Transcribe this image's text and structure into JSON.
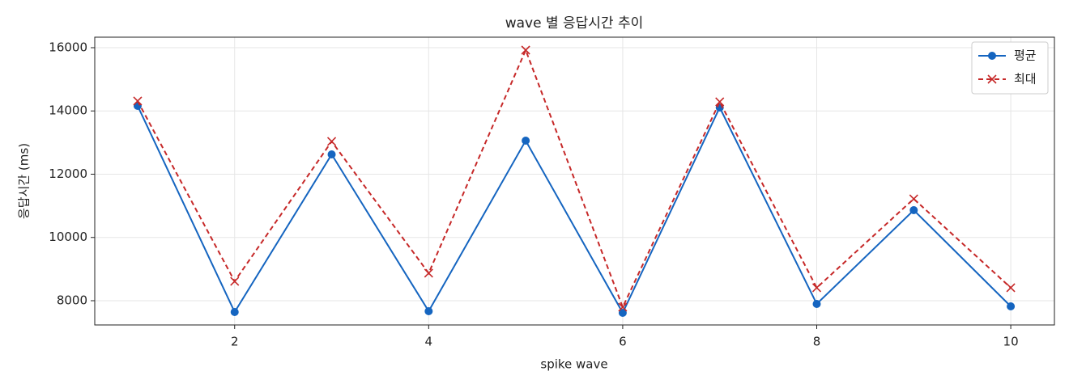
{
  "chart_data": {
    "type": "line",
    "title": "wave 별 응답시간 추이",
    "x_label": "spike wave",
    "y_label": "응답시간 (ms)",
    "x": [
      1,
      2,
      3,
      4,
      5,
      6,
      7,
      8,
      9,
      10
    ],
    "series": [
      {
        "name": "평균",
        "color": "#1565c0",
        "marker": "o",
        "linestyle": "solid",
        "values": [
          14160,
          7642,
          12626,
          7668,
          13061,
          7617,
          14109,
          7898,
          10863,
          7821
        ]
      },
      {
        "name": "최대",
        "color": "#c62828",
        "marker": "x",
        "linestyle": "dashed",
        "values": [
          14313,
          8613,
          13035,
          8869,
          15923,
          7796,
          14288,
          8409,
          11220,
          8409
        ]
      }
    ],
    "xlim": [
      0.558,
      10.45
    ],
    "xticks": [
      2,
      4,
      6,
      8,
      10
    ],
    "ylim": [
      7233,
      16332
    ],
    "yticks": [
      8000,
      10000,
      12000,
      14000,
      16000
    ],
    "grid": true,
    "legend": "upper right"
  }
}
